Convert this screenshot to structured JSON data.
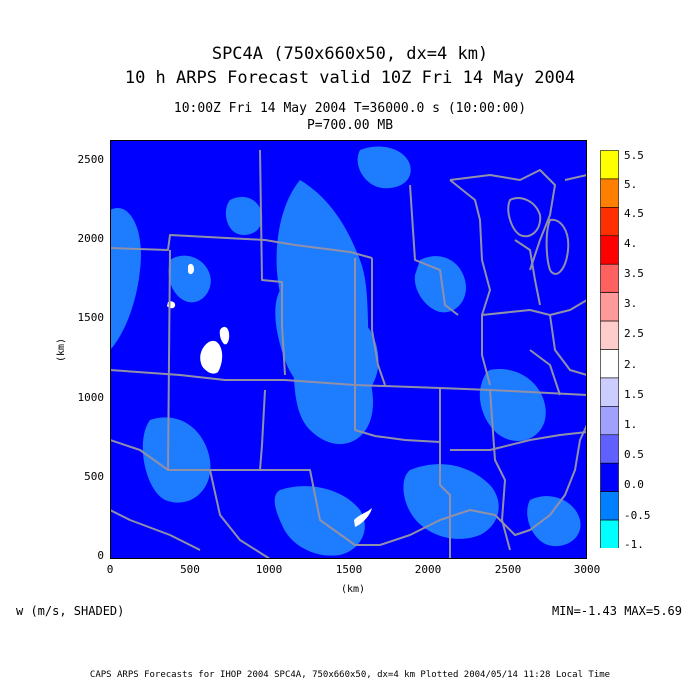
{
  "header": {
    "title_line1": "SPC4A (750x660x50, dx=4 km)",
    "title_line2": "10 h ARPS Forecast valid 10Z Fri 14 May 2004",
    "subtitle_line1": "10:00Z Fri 14 May 2004      T=36000.0 s (10:00:00)",
    "subtitle_line2": "P=700.00 MB"
  },
  "axes": {
    "x_ticks": [
      "0",
      "500",
      "1000",
      "1500",
      "2000",
      "2500",
      "3000"
    ],
    "y_ticks": [
      "0",
      "500",
      "1000",
      "1500",
      "2000",
      "2500"
    ],
    "x_label": "(km)",
    "y_label": "(km)",
    "x_range_km": [
      0,
      3000
    ],
    "y_range_km": [
      0,
      2640
    ]
  },
  "colorbar": {
    "labels": [
      "5.5",
      "5.",
      "4.5",
      "4.",
      "3.5",
      "3.",
      "2.5",
      "2.",
      "1.5",
      "1.",
      "0.5",
      "0.0",
      "-0.5",
      "-1."
    ],
    "colors": [
      "#ffff00",
      "#ff8000",
      "#ff3000",
      "#ff0000",
      "#ff6060",
      "#ff9a9a",
      "#ffcccc",
      "#ffffff",
      "#ccccff",
      "#a0a0ff",
      "#6060ff",
      "#0000ff",
      "#0080ff",
      "#00ffff"
    ]
  },
  "map": {
    "fill_color": "#0000ff",
    "shade_color": "#1e7cff",
    "border_color": "#9090a8"
  },
  "field": {
    "variable": "w (m/s, SHADED)",
    "minmax": "MIN=-1.43 MAX=5.69"
  },
  "footer": {
    "text": "CAPS ARPS Forecasts for IHOP 2004  SPC4A, 750x660x50, dx=4 km  Plotted 2004/05/14 11:28 Local Time"
  }
}
